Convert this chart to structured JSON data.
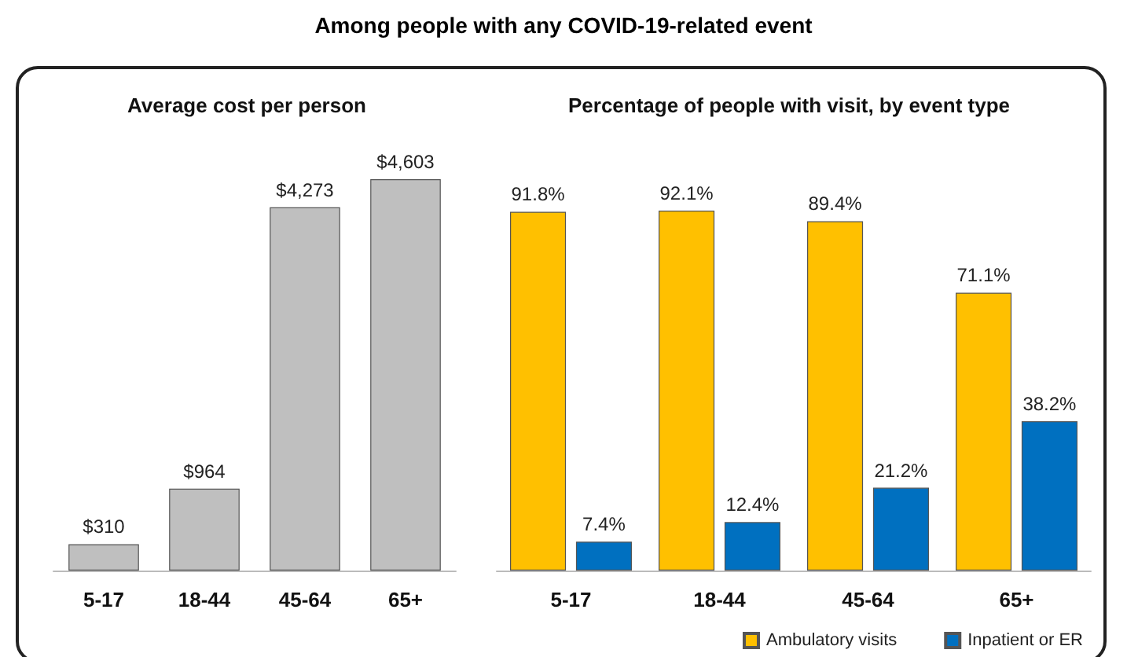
{
  "chart_data": [
    {
      "type": "bar",
      "title": "Among people with any COVID-19-related  event",
      "subtitle": "Average cost per person",
      "categories": [
        "5-17",
        "18-44",
        "45-64",
        "65+"
      ],
      "values": [
        310,
        964,
        4273,
        4603
      ],
      "value_labels": [
        "$310",
        "$964",
        "$4,273",
        "$4,603"
      ],
      "color": "#bfbfbf"
    },
    {
      "type": "bar",
      "title": "Percentage of people with visit, by event type",
      "categories": [
        "5-17",
        "18-44",
        "45-64",
        "65+"
      ],
      "legend": "bottom",
      "series": [
        {
          "name": "Ambulatory visits",
          "color": "#ffc000",
          "values": [
            91.8,
            92.1,
            89.4,
            71.1
          ],
          "value_labels": [
            "91.8%",
            "92.1%",
            "89.4%",
            "71.1%"
          ]
        },
        {
          "name": "Inpatient or ER",
          "color": "#0070c0",
          "values": [
            7.4,
            12.4,
            21.2,
            38.2
          ],
          "value_labels": [
            "7.4%",
            "12.4%",
            "21.2%",
            "38.2%"
          ]
        }
      ]
    }
  ]
}
